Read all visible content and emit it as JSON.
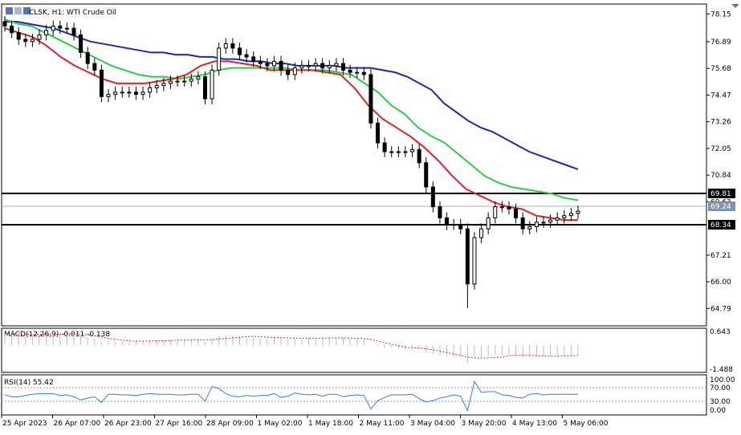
{
  "header": {
    "title": "CLSK, H1: WTI Crude Oil"
  },
  "macd": {
    "label": "MACD(12,26,9) -0.011 -0.138",
    "axis_top": "0.643",
    "axis_bottom": "-1.488"
  },
  "rsi": {
    "label": "RSI(14) 55.42",
    "axis_values": [
      "100.00",
      "70.00",
      "30.00",
      "0.00"
    ]
  },
  "chart_data": {
    "type": "candlestick",
    "title": "CLSK, H1: WTI Crude Oil",
    "price_axis_ticks": [
      "78.15",
      "76.89",
      "75.68",
      "74.47",
      "73.26",
      "72.05",
      "70.84",
      "69.63",
      "67.21",
      "66.00",
      "64.79"
    ],
    "time_axis_ticks": [
      "25 Apr 2023",
      "26 Apr 07:00",
      "26 Apr 23:00",
      "27 Apr 16:00",
      "28 Apr 09:00",
      "1 May 02:00",
      "1 May 18:00",
      "2 May 11:00",
      "3 May 04:00",
      "3 May 20:00",
      "4 May 13:00",
      "5 May 06:00"
    ],
    "ylim": [
      64.0,
      78.6
    ],
    "horizontal_levels": [
      {
        "value": 69.81,
        "label": "69.81",
        "color": "#000000"
      },
      {
        "value": 68.34,
        "label": "68.34",
        "color": "#000000"
      }
    ],
    "current_price": {
      "value": 69.24,
      "label": "69.24",
      "color": "#7a95b3"
    },
    "closes": [
      77.6,
      77.3,
      77.0,
      76.9,
      77.0,
      77.2,
      77.4,
      77.6,
      77.5,
      77.5,
      77.2,
      76.4,
      75.9,
      75.6,
      74.4,
      74.5,
      74.6,
      74.6,
      74.6,
      74.5,
      74.6,
      74.8,
      74.9,
      75.0,
      75.1,
      75.1,
      75.1,
      75.2,
      75.3,
      74.3,
      75.6,
      76.6,
      76.8,
      76.6,
      76.3,
      76.2,
      76.0,
      75.9,
      75.8,
      76.0,
      75.6,
      75.4,
      75.7,
      75.8,
      75.8,
      75.9,
      75.7,
      75.8,
      75.9,
      75.6,
      75.5,
      75.5,
      75.4,
      73.2,
      72.3,
      71.9,
      71.9,
      71.9,
      71.9,
      72.0,
      71.4,
      70.3,
      69.4,
      68.9,
      68.6,
      68.6,
      68.4,
      65.9,
      68.0,
      68.4,
      68.9,
      69.4,
      69.4,
      69.3,
      68.9,
      68.4,
      68.5,
      68.7,
      68.7,
      68.8,
      68.9,
      69.0,
      69.1,
      69.2
    ],
    "indicators": [
      {
        "type": "moving_average",
        "color": "#1a29b5",
        "values": [
          77.8,
          77.8,
          77.7,
          77.6,
          77.5,
          77.3,
          77.1,
          76.9,
          76.8,
          76.7,
          76.6,
          76.5,
          76.4,
          76.4,
          76.3,
          76.3,
          76.2,
          76.2,
          76.1,
          76.1,
          76.0,
          76.0,
          75.9,
          75.9,
          75.8,
          75.8,
          75.8,
          75.8,
          75.7,
          75.7,
          75.7,
          75.6,
          75.5,
          75.3,
          75.0,
          74.7,
          74.1,
          73.7,
          73.3,
          73.0,
          72.8,
          72.5,
          72.2,
          71.9,
          71.7,
          71.5,
          71.3,
          71.1
        ]
      },
      {
        "type": "moving_average",
        "color": "#2ecc40",
        "values": [
          77.9,
          77.7,
          77.6,
          77.3,
          77.0,
          76.7,
          76.4,
          76.1,
          75.8,
          75.6,
          75.4,
          75.3,
          75.3,
          75.2,
          75.3,
          75.4,
          75.6,
          75.7,
          75.7,
          75.7,
          75.7,
          75.7,
          75.6,
          75.6,
          75.6,
          75.5,
          75.4,
          75.0,
          74.6,
          74.0,
          73.6,
          73.0,
          72.6,
          72.3,
          71.8,
          71.3,
          70.8,
          70.5,
          70.3,
          70.2,
          70.1,
          70.0,
          69.8,
          69.7
        ]
      },
      {
        "type": "moving_average",
        "color": "#e02424",
        "values": [
          77.5,
          77.3,
          77.1,
          76.7,
          76.2,
          75.8,
          75.5,
          75.2,
          75.0,
          75.0,
          75.0,
          75.1,
          75.2,
          75.4,
          75.8,
          76.0,
          76.0,
          75.9,
          75.8,
          75.6,
          75.6,
          75.6,
          75.6,
          75.5,
          75.4,
          74.8,
          74.0,
          73.4,
          73.0,
          72.6,
          72.1,
          71.5,
          70.8,
          70.2,
          69.9,
          69.6,
          69.4,
          69.3,
          69.0,
          68.9,
          68.8,
          68.8
        ]
      }
    ]
  }
}
